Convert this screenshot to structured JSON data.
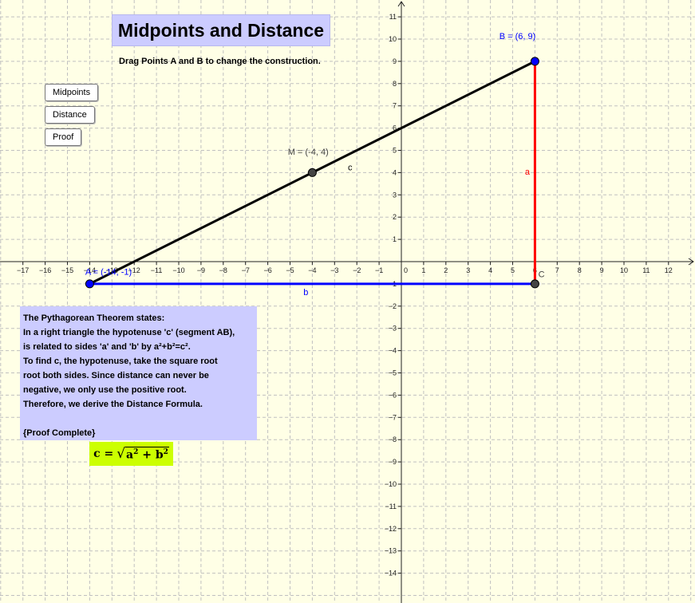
{
  "title": "Midpoints and Distance",
  "subtitle": "Drag Points A and B to change the construction.",
  "buttons": {
    "midpoints": "Midpoints",
    "distance": "Distance",
    "proof": "Proof"
  },
  "proof": {
    "lines": [
      "The Pythagorean Theorem states:",
      "In a right triangle the hypotenuse 'c' (segment AB),",
      "is related to sides 'a' and 'b' by a²+b²=c².",
      "To find c, the hypotenuse, take the square root",
      "root both sides. Since distance can never be",
      "negative, we only use the positive root.",
      "Therefore, we derive the Distance Formula."
    ],
    "complete": "{Proof Complete}"
  },
  "formula": {
    "lhs": "c =",
    "a": "a",
    "plus": " + ",
    "b": "b",
    "exp": "2",
    "radical": "√"
  },
  "graph": {
    "x_ticks": [
      -17,
      -16,
      -15,
      -14,
      -13,
      -12,
      -11,
      -10,
      -9,
      -8,
      -7,
      -6,
      -5,
      -4,
      -3,
      -2,
      -1,
      1,
      2,
      3,
      4,
      5,
      6,
      7,
      8,
      9,
      10,
      11,
      12
    ],
    "y_ticks": [
      11,
      10,
      9,
      8,
      7,
      6,
      5,
      4,
      3,
      2,
      1,
      -1,
      -2,
      -3,
      -4,
      -5,
      -6,
      -7,
      -8,
      -9,
      -10,
      -11,
      -12,
      -13,
      -14
    ],
    "origin_label": "0",
    "points": [
      {
        "id": "A",
        "label": "A = (-14, -1)",
        "x": -14,
        "y": -1,
        "color": "#0000ff"
      },
      {
        "id": "B",
        "label": "B = (6, 9)",
        "x": 6,
        "y": 9,
        "color": "#0000ff"
      },
      {
        "id": "M",
        "label": "M = (-4, 4)",
        "x": -4,
        "y": 4,
        "color": "#444444"
      },
      {
        "id": "C",
        "label": "C",
        "x": 6,
        "y": -1,
        "color": "#444444"
      }
    ],
    "segments": [
      {
        "id": "c",
        "label": "c",
        "from": "A",
        "to": "B",
        "color": "#000000"
      },
      {
        "id": "a",
        "label": "a",
        "from": "C",
        "to": "B",
        "color": "#ff0000"
      },
      {
        "id": "b",
        "label": "b",
        "from": "A",
        "to": "C",
        "color": "#0000ff"
      }
    ]
  },
  "colors": {
    "background": "#ffffe6",
    "grid": "#c0c0c0",
    "panel": "#ccccff",
    "formula_bg": "#ccff00"
  }
}
